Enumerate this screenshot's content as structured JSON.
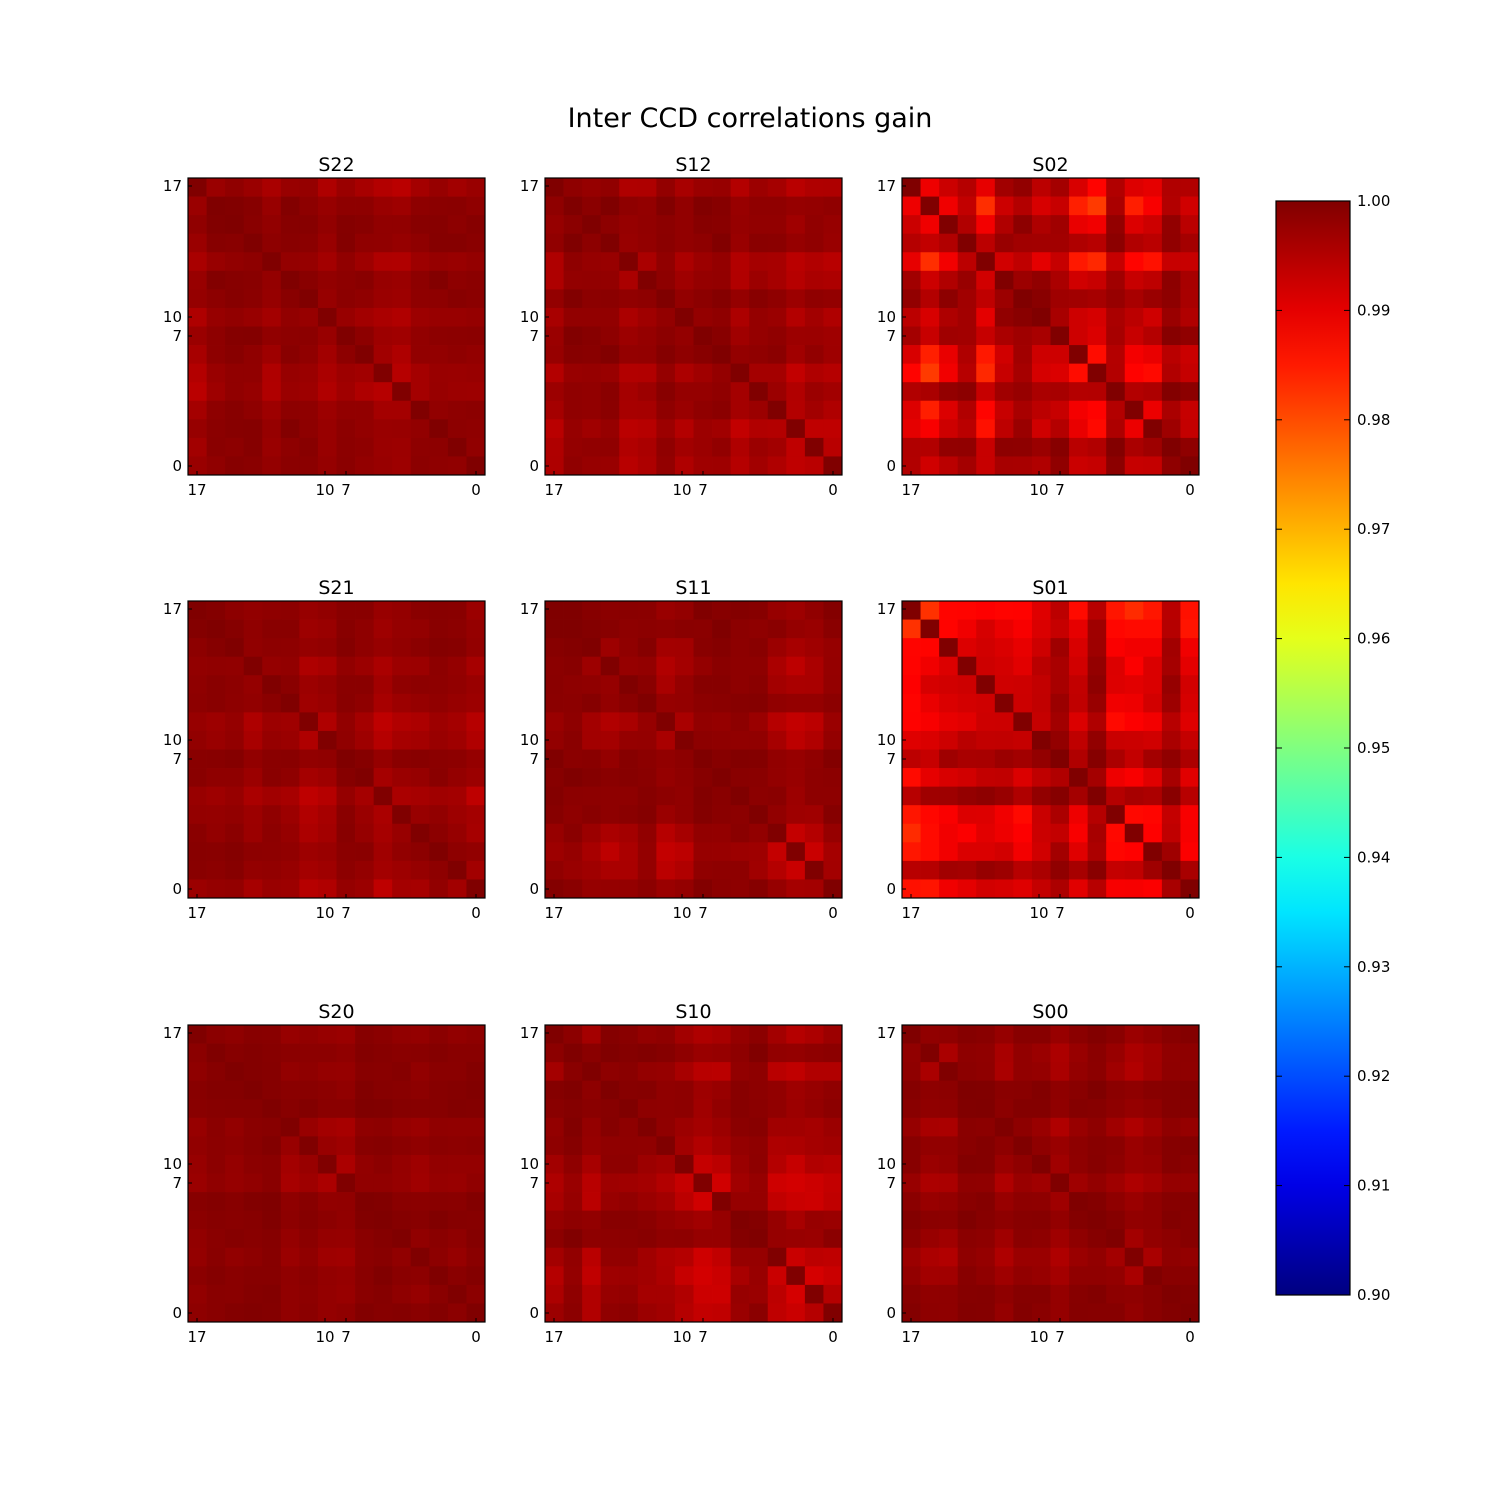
{
  "figure": {
    "title": "Inter CCD correlations gain"
  },
  "chart_data": {
    "type": "heatmap",
    "title": "Inter CCD correlations gain",
    "grid_size": 16,
    "x_tick_labels": [
      "17",
      "10",
      "7",
      "0"
    ],
    "y_tick_labels": [
      "17",
      "10",
      "7",
      "0"
    ],
    "colorbar": {
      "colormap": "jet",
      "range": [
        0.9,
        1.0
      ],
      "ticks": [
        "1.00",
        "0.99",
        "0.98",
        "0.97",
        "0.96",
        "0.95",
        "0.94",
        "0.93",
        "0.92",
        "0.91",
        "0.90"
      ]
    },
    "panels": [
      {
        "name": "S22",
        "min_value": 0.993,
        "seed": 11
      },
      {
        "name": "S12",
        "min_value": 0.992,
        "seed": 12
      },
      {
        "name": "S02",
        "min_value": 0.977,
        "seed": 13
      },
      {
        "name": "S21",
        "min_value": 0.993,
        "seed": 21
      },
      {
        "name": "S11",
        "min_value": 0.991,
        "seed": 22
      },
      {
        "name": "S01",
        "min_value": 0.978,
        "seed": 23
      },
      {
        "name": "S20",
        "min_value": 0.995,
        "seed": 31
      },
      {
        "name": "S10",
        "min_value": 0.99,
        "seed": 32
      },
      {
        "name": "S00",
        "min_value": 0.994,
        "seed": 33
      }
    ]
  }
}
